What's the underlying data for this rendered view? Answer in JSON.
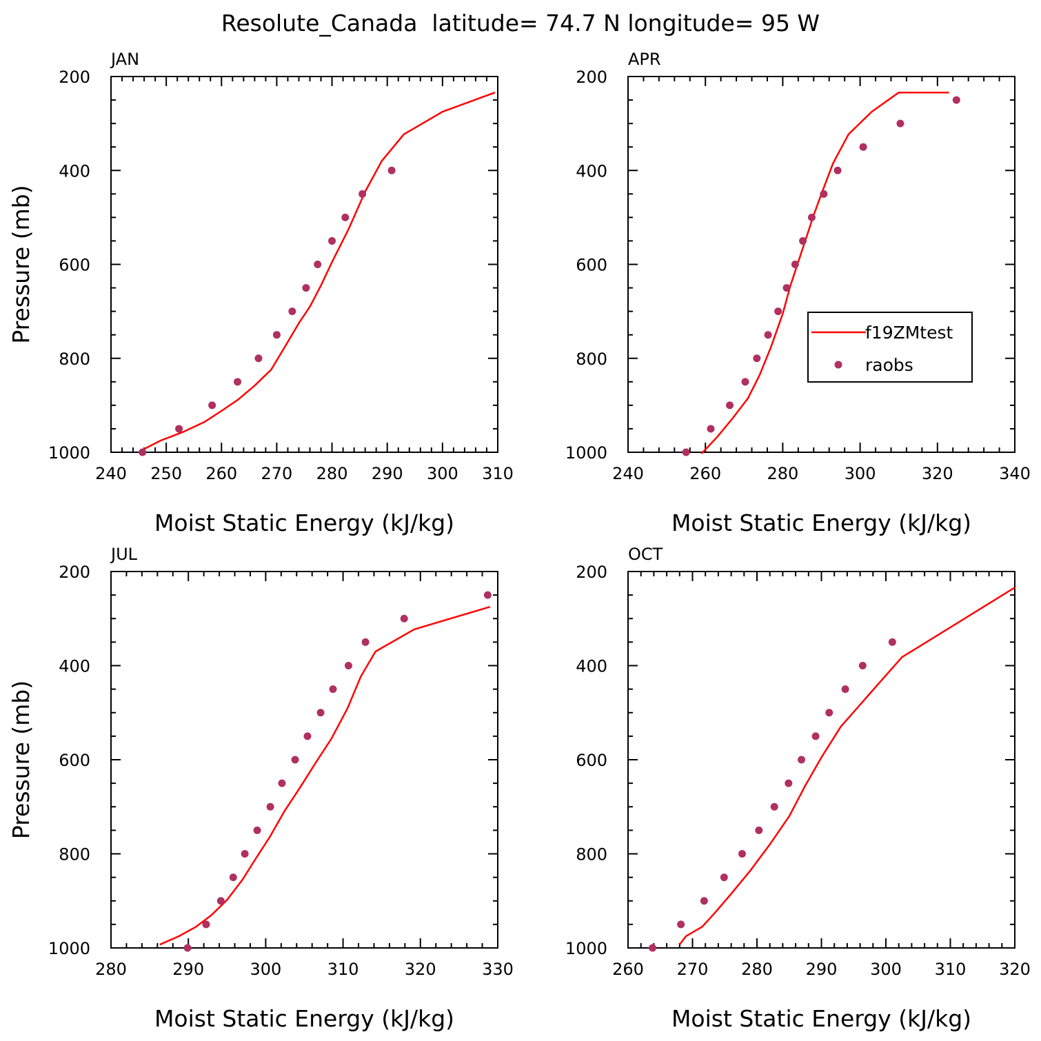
{
  "title": "Resolute_Canada  latitude= 74.7 N longitude= 95 W",
  "colors": {
    "model": "#ff0000",
    "obs": "#b03060",
    "axis": "#000000"
  },
  "legend": {
    "placement": "inside, right-center of APR panel",
    "model_label": "f19ZMtest",
    "obs_label": "raobs"
  },
  "chart_data": [
    {
      "type": "line",
      "panel_label": "JAN",
      "xlabel": "Moist Static Energy (kJ/kg)",
      "ylabel": "Pressure (mb)",
      "xlim": [
        240,
        310
      ],
      "ylim": [
        1000,
        200
      ],
      "y_reversed": true,
      "xticks": [
        240,
        250,
        260,
        270,
        280,
        290,
        300,
        310
      ],
      "yticks": [
        200,
        400,
        600,
        800,
        1000
      ],
      "series": [
        {
          "name": "f19ZMtest",
          "style": "line",
          "x": [
            246,
            249,
            253,
            257,
            260,
            263,
            266,
            269,
            272,
            274,
            276,
            278,
            280,
            283,
            286,
            289,
            293,
            300,
            309.5
          ],
          "y": [
            993,
            975,
            957,
            935,
            912,
            888,
            858,
            824,
            765,
            725,
            690,
            645,
            595,
            525,
            445,
            380,
            323,
            275,
            234
          ]
        },
        {
          "name": "raobs",
          "style": "markers",
          "x": [
            245.7,
            252.3,
            258.3,
            262.9,
            266.7,
            270.0,
            272.8,
            275.3,
            277.4,
            280.0,
            282.4,
            285.5,
            290.8
          ],
          "y": [
            1000,
            950,
            900,
            850,
            800,
            750,
            700,
            650,
            600,
            550,
            500,
            450,
            400
          ]
        }
      ]
    },
    {
      "type": "line",
      "panel_label": "APR",
      "xlabel": "Moist Static Energy (kJ/kg)",
      "ylabel": "",
      "xlim": [
        240,
        340
      ],
      "ylim": [
        1000,
        200
      ],
      "y_reversed": true,
      "xticks": [
        240,
        260,
        280,
        300,
        320,
        340
      ],
      "yticks": [
        200,
        400,
        600,
        800,
        1000
      ],
      "series": [
        {
          "name": "f19ZMtest",
          "style": "line",
          "x": [
            259,
            263,
            267,
            271,
            274,
            277,
            280,
            282,
            284,
            286,
            288,
            290,
            293,
            297,
            303,
            310,
            323
          ],
          "y": [
            1003,
            968,
            928,
            885,
            836,
            775,
            705,
            645,
            595,
            545,
            495,
            450,
            385,
            323,
            275,
            234,
            234
          ]
        },
        {
          "name": "raobs",
          "style": "markers",
          "x": [
            255.0,
            261.4,
            266.3,
            270.3,
            273.3,
            276.2,
            278.8,
            281.0,
            283.2,
            285.2,
            287.5,
            290.6,
            294.2,
            300.8,
            310.4,
            324.9
          ],
          "y": [
            1000,
            950,
            900,
            850,
            800,
            750,
            700,
            650,
            600,
            550,
            500,
            450,
            400,
            350,
            300,
            250
          ]
        }
      ]
    },
    {
      "type": "line",
      "panel_label": "JUL",
      "xlabel": "Moist Static Energy (kJ/kg)",
      "ylabel": "Pressure (mb)",
      "xlim": [
        280,
        330
      ],
      "ylim": [
        1000,
        200
      ],
      "y_reversed": true,
      "xticks": [
        280,
        290,
        300,
        310,
        320,
        330
      ],
      "yticks": [
        200,
        400,
        600,
        800,
        1000
      ],
      "series": [
        {
          "name": "f19ZMtest",
          "style": "line",
          "x": [
            286.3,
            288.8,
            291.0,
            293.0,
            295.0,
            297.0,
            298.8,
            300.5,
            302.4,
            304.4,
            306.4,
            308.5,
            310.6,
            312.3,
            314.2,
            319.2,
            329.0
          ],
          "y": [
            993,
            975,
            955,
            930,
            898,
            855,
            808,
            765,
            710,
            660,
            608,
            555,
            490,
            423,
            370,
            323,
            275
          ]
        },
        {
          "name": "raobs",
          "style": "markers",
          "x": [
            289.9,
            292.3,
            294.2,
            295.8,
            297.3,
            298.9,
            300.6,
            302.1,
            303.8,
            305.4,
            307.1,
            308.7,
            310.7,
            312.9,
            317.9,
            328.7
          ],
          "y": [
            1000,
            950,
            900,
            850,
            800,
            750,
            700,
            650,
            600,
            550,
            500,
            450,
            400,
            350,
            300,
            250
          ]
        }
      ]
    },
    {
      "type": "line",
      "panel_label": "OCT",
      "xlabel": "Moist Static Energy (kJ/kg)",
      "ylabel": "",
      "xlim": [
        260,
        320
      ],
      "ylim": [
        1000,
        200
      ],
      "y_reversed": true,
      "xticks": [
        260,
        270,
        280,
        290,
        300,
        310,
        320
      ],
      "yticks": [
        200,
        400,
        600,
        800,
        1000
      ],
      "series": [
        {
          "name": "f19ZMtest",
          "style": "line",
          "x": [
            268.0,
            269.0,
            271.5,
            273.5,
            276.0,
            279.0,
            282.0,
            285.0,
            287.5,
            290.0,
            293.0,
            297.8,
            302.5,
            309.5,
            320.0
          ],
          "y": [
            993,
            975,
            955,
            925,
            885,
            835,
            780,
            720,
            655,
            595,
            530,
            455,
            382,
            323,
            234
          ]
        },
        {
          "name": "raobs",
          "style": "markers",
          "x": [
            263.8,
            268.2,
            271.8,
            274.9,
            277.7,
            280.3,
            282.7,
            284.9,
            286.9,
            289.1,
            291.2,
            293.7,
            296.4,
            301.0
          ],
          "y": [
            1000,
            950,
            900,
            850,
            800,
            750,
            700,
            650,
            600,
            550,
            500,
            450,
            400,
            350
          ]
        }
      ]
    }
  ]
}
